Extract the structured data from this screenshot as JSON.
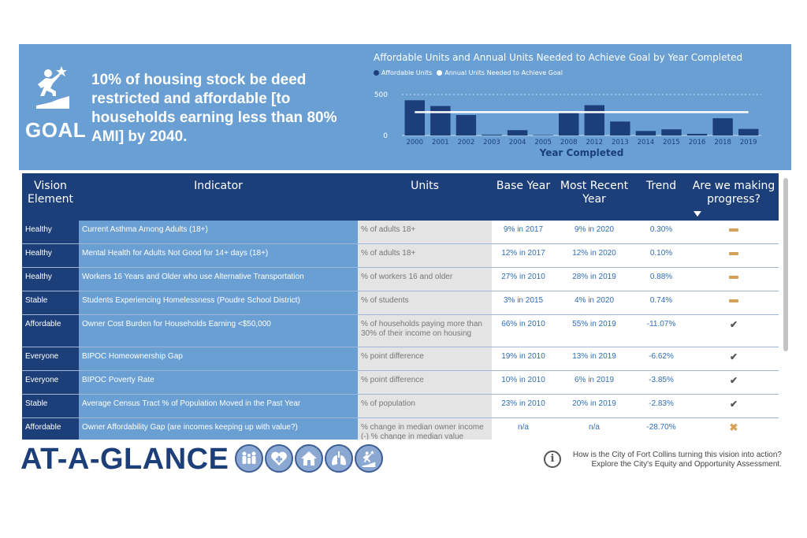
{
  "goal": {
    "label": "GOAL",
    "text": "10% of housing stock be deed restricted and affordable [to households earning less than 80% AMI] by 2040."
  },
  "chart_data": {
    "type": "bar",
    "title": "Affordable Units and Annual Units Needed to Achieve Goal by Year Completed",
    "xlabel": "Year Completed",
    "ylabel": "",
    "categories": [
      "2000",
      "2001",
      "2002",
      "2003",
      "2004",
      "2005",
      "2008",
      "2012",
      "2013",
      "2014",
      "2015",
      "2016",
      "2018",
      "2019"
    ],
    "series": [
      {
        "name": "Affordable Units",
        "values": [
          430,
          360,
          250,
          10,
          65,
          5,
          280,
          370,
          170,
          55,
          75,
          20,
          210,
          80
        ],
        "color": "#1c3f7a"
      },
      {
        "name": "Annual Units Needed to Achieve Goal",
        "values": [
          285,
          285,
          285,
          285,
          285,
          285,
          285,
          285,
          285,
          285,
          285,
          285,
          285,
          285
        ],
        "color": "#ffffff",
        "render": "line"
      }
    ],
    "yticks": [
      "0",
      "500"
    ],
    "ylim": [
      0,
      500
    ]
  },
  "table": {
    "headers": {
      "vision": "Vision Element",
      "indicator": "Indicator",
      "units": "Units",
      "base": "Base Year",
      "recent": "Most Recent Year",
      "trend": "Trend",
      "progress": "Are we making progress?"
    },
    "rows": [
      {
        "vision": "Healthy",
        "indicator": "Current Asthma Among Adults (18+)",
        "units": "% of adults 18+",
        "base": "9% in 2017",
        "recent": "9% in 2020",
        "trend": "0.30%",
        "progress": "neutral"
      },
      {
        "vision": "Healthy",
        "indicator": "Mental Health for Adults Not Good for 14+ days (18+)",
        "units": "% of adults 18+",
        "base": "12% in 2017",
        "recent": "12% in 2020",
        "trend": "0.10%",
        "progress": "neutral"
      },
      {
        "vision": "Healthy",
        "indicator": "Workers 16 Years and Older who use Alternative Transportation",
        "units": "% of workers 16 and older",
        "base": "27% in 2010",
        "recent": "28% in 2019",
        "trend": "0.88%",
        "progress": "neutral"
      },
      {
        "vision": "Stable",
        "indicator": "Students Experiencing Homelessness (Poudre School District)",
        "units": "% of students",
        "base": "3% in 2015",
        "recent": "4% in 2020",
        "trend": "0.74%",
        "progress": "neutral"
      },
      {
        "vision": "Affordable",
        "indicator": "Owner Cost Burden for Households Earning <$50,000",
        "units": "% of households paying more than 30% of their income on housing",
        "base": "66% in 2010",
        "recent": "55% in 2019",
        "trend": "-11.07%",
        "progress": "yes",
        "tall": true
      },
      {
        "vision": "Everyone",
        "indicator": "BIPOC Homeownership Gap",
        "units": "% point difference",
        "base": "19% in 2010",
        "recent": "13% in 2019",
        "trend": "-6.62%",
        "progress": "yes"
      },
      {
        "vision": "Everyone",
        "indicator": "BIPOC Poverty Rate",
        "units": "% point difference",
        "base": "10% in 2010",
        "recent": "6% in 2019",
        "trend": "-3.85%",
        "progress": "yes"
      },
      {
        "vision": "Stable",
        "indicator": "Average Census Tract % of Population Moved in the Past Year",
        "units": "% of population",
        "base": "23% in 2010",
        "recent": "20% in 2019",
        "trend": "-2.83%",
        "progress": "yes"
      },
      {
        "vision": "Affordable",
        "indicator": "Owner Affordability Gap (are incomes keeping up with value?)",
        "units": "% change in median owner income (-) % change in median value",
        "base": "n/a",
        "recent": "n/a",
        "trend": "-28.70%",
        "progress": "no",
        "tall": true
      }
    ]
  },
  "footer": {
    "title": "AT-A-GLANCE",
    "icons": [
      "people-icon",
      "health-icon",
      "home-icon",
      "lungs-icon",
      "goal-icon"
    ],
    "info_text": "How is the City of Fort Collins turning this vision into action? Explore the City's Equity and Opportunity Assessment."
  }
}
